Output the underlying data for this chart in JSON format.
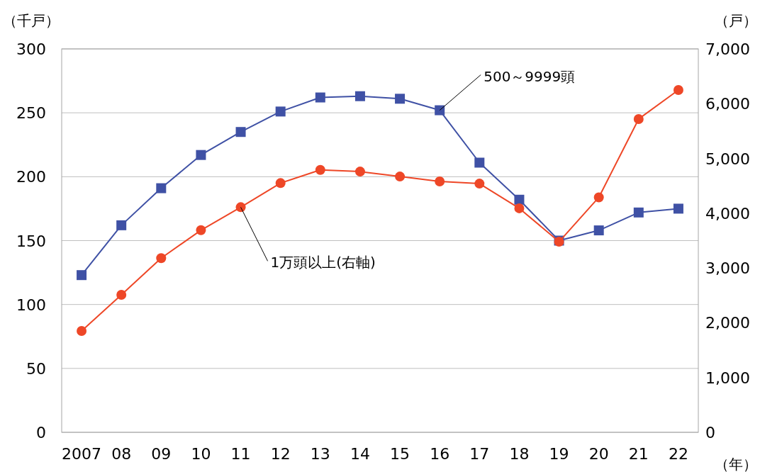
{
  "chart_data": {
    "type": "line",
    "ylabel": "（千戸）",
    "y2label": "（戸）",
    "xlabel": "（年）",
    "categories": [
      "2007",
      "08",
      "09",
      "10",
      "11",
      "12",
      "13",
      "14",
      "15",
      "16",
      "17",
      "18",
      "19",
      "20",
      "21",
      "22"
    ],
    "series": [
      {
        "name": "500～9999頭",
        "color": "#3f51a5",
        "marker": "square",
        "values": [
          123,
          162,
          191,
          217,
          235,
          251,
          262,
          263,
          261,
          252,
          211,
          182,
          150,
          158,
          172,
          175
        ]
      },
      {
        "name": "1万頭以上(右軸)",
        "color": "#ee4727",
        "marker": "circle",
        "axis": "y2",
        "values": [
          1850,
          2510,
          3180,
          3690,
          4110,
          4550,
          4790,
          4760,
          4670,
          4580,
          4540,
          4090,
          3480,
          4290,
          5720,
          6250
        ]
      }
    ],
    "ylim": [
      0,
      300
    ],
    "yticks": [
      0,
      50,
      100,
      150,
      200,
      250,
      300
    ],
    "y2lim": [
      0,
      7000
    ],
    "y2ticks": [
      {
        "value": 0,
        "label": "0"
      },
      {
        "value": 1000,
        "label": "1,000"
      },
      {
        "value": 2000,
        "label": "2,000"
      },
      {
        "value": 3000,
        "label": "3,000"
      },
      {
        "value": 4000,
        "label": "4,000"
      },
      {
        "value": 5000,
        "label": "5,000"
      },
      {
        "value": 6000,
        "label": "6,000"
      },
      {
        "value": 7000,
        "label": "7,000"
      }
    ],
    "grid": "y",
    "line_style": "solid"
  }
}
